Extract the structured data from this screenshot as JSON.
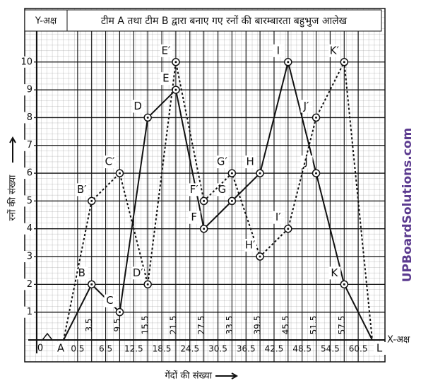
{
  "chart_data": {
    "type": "line",
    "title": "टीम A तथा टीम B द्वारा बनाए गए रनों की बारम्बारता बहुभुज आलेख",
    "y_axis_name": "Y-अक्ष",
    "x_axis_name": "X-अक्ष",
    "ylabel": "रनों की संख्या",
    "xlabel": "गेंदों की संख्या",
    "watermark": "UPBoardSolutions.com",
    "origin_label": "0",
    "x": [
      -2.5,
      3.5,
      9.5,
      15.5,
      21.5,
      27.5,
      33.5,
      39.5,
      45.5,
      51.5,
      57.5,
      63.5
    ],
    "series": [
      {
        "color": "#111111",
        "dash": false,
        "values": [
          0,
          2,
          1,
          8,
          9,
          4,
          5,
          6,
          10,
          6,
          2,
          0
        ],
        "point_labels": [
          "A",
          "B",
          "C",
          "D",
          "E",
          "F",
          "G",
          "H",
          "I",
          "J",
          "K",
          "L"
        ]
      },
      {
        "color": "#111111",
        "dash": true,
        "values": [
          0,
          5,
          6,
          2,
          10,
          5,
          6,
          3,
          4,
          8,
          10,
          0
        ],
        "point_labels": [
          null,
          "B′",
          "C′",
          "D′",
          "E′",
          "F′",
          "G′",
          "H′",
          "I′",
          "J′",
          "K′",
          null
        ]
      }
    ],
    "xlim": [
      -2.5,
      63.5
    ],
    "ylim": [
      0,
      11.8
    ],
    "xticks": [
      0.5,
      6.5,
      12.5,
      18.5,
      24.5,
      30.5,
      36.5,
      42.5,
      48.5,
      54.5,
      60.5
    ],
    "xticks_class_marks": [
      3.5,
      9.5,
      15.5,
      21.5,
      27.5,
      33.5,
      39.5,
      45.5,
      51.5,
      57.5
    ],
    "yticks": [
      1,
      2,
      3,
      4,
      5,
      6,
      7,
      8,
      9,
      10
    ],
    "grid": true
  }
}
